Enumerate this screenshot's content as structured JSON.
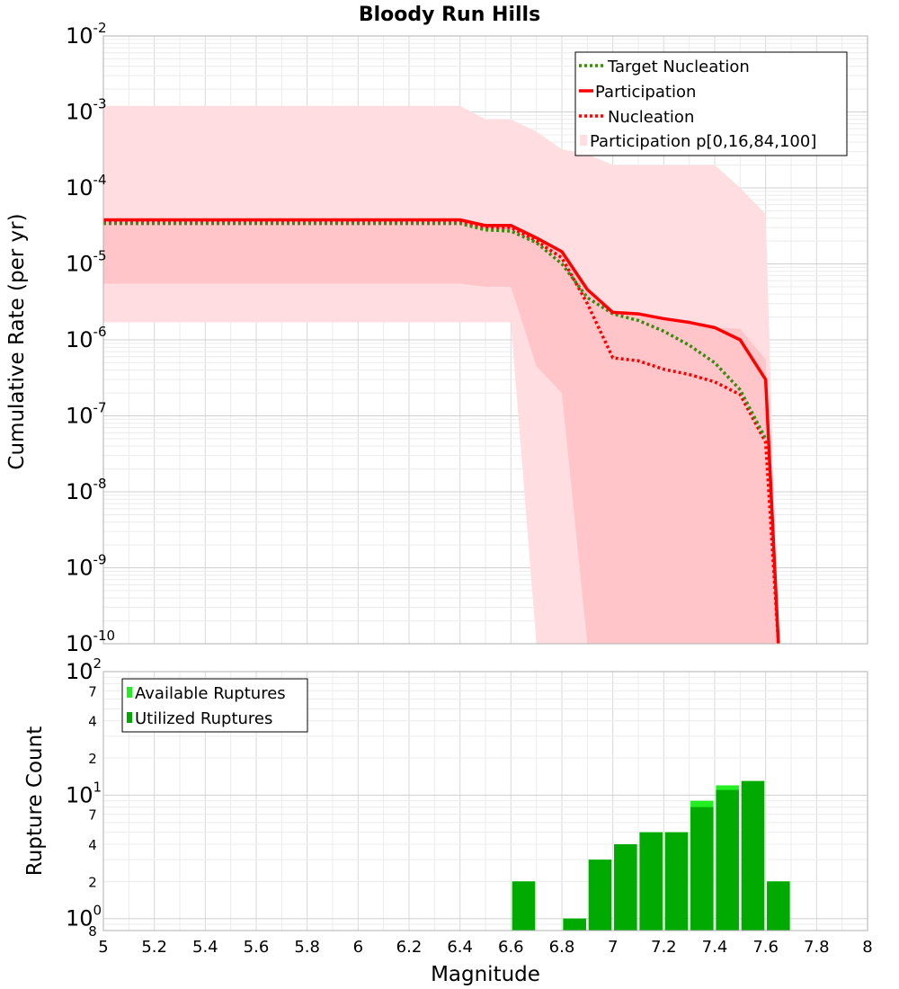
{
  "chart_data": [
    {
      "type": "line",
      "title": "Bloody Run Hills",
      "xlabel": "",
      "ylabel": "Cumulative Rate (per yr)",
      "xlim": [
        5,
        8
      ],
      "ylim": [
        1e-10,
        0.01
      ],
      "yscale": "log",
      "grid": true,
      "legend_position": "top-right",
      "y_ticks": [
        {
          "base": "10",
          "exp": "-10",
          "v": 1e-10
        },
        {
          "base": "10",
          "exp": "-9",
          "v": 1e-09
        },
        {
          "base": "10",
          "exp": "-8",
          "v": 1e-08
        },
        {
          "base": "10",
          "exp": "-7",
          "v": 1e-07
        },
        {
          "base": "10",
          "exp": "-6",
          "v": 1e-06
        },
        {
          "base": "10",
          "exp": "-5",
          "v": 1e-05
        },
        {
          "base": "10",
          "exp": "-4",
          "v": 0.0001
        },
        {
          "base": "10",
          "exp": "-3",
          "v": 0.001
        },
        {
          "base": "10",
          "exp": "-2",
          "v": 0.01
        }
      ],
      "series": [
        {
          "name": "Target Nucleation",
          "style": "dotted",
          "color": "#3a8a10",
          "x": [
            5.0,
            6.4,
            6.5,
            6.6,
            6.7,
            6.8,
            6.9,
            7.0,
            7.1,
            7.2,
            7.3,
            7.4,
            7.5,
            7.6
          ],
          "y": [
            3.4e-05,
            3.4e-05,
            2.8e-05,
            2.7e-05,
            1.9e-05,
            1e-05,
            3.6e-06,
            2.2e-06,
            1.8e-06,
            1.3e-06,
            8.5e-07,
            5e-07,
            2.2e-07,
            5e-08
          ]
        },
        {
          "name": "Participation",
          "style": "solid",
          "color": "#ff0000",
          "x": [
            5.0,
            6.4,
            6.5,
            6.6,
            6.7,
            6.8,
            6.9,
            7.0,
            7.1,
            7.2,
            7.3,
            7.4,
            7.5,
            7.6,
            7.65
          ],
          "y": [
            3.8e-05,
            3.8e-05,
            3.2e-05,
            3.2e-05,
            2.2e-05,
            1.45e-05,
            4.6e-06,
            2.3e-06,
            2.2e-06,
            1.9e-06,
            1.7e-06,
            1.45e-06,
            1e-06,
            3e-07,
            1e-10
          ]
        },
        {
          "name": "Nucleation",
          "style": "dotted",
          "color": "#ff0000",
          "x": [
            5.0,
            6.4,
            6.5,
            6.6,
            6.7,
            6.8,
            6.9,
            7.0,
            7.1,
            7.2,
            7.3,
            7.4,
            7.5,
            7.6,
            7.65
          ],
          "y": [
            3.6e-05,
            3.6e-05,
            3e-05,
            3e-05,
            2e-05,
            1.2e-05,
            3e-06,
            5.8e-07,
            5.3e-07,
            4.1e-07,
            3.5e-07,
            2.8e-07,
            1.9e-07,
            4.5e-08,
            1e-10
          ]
        }
      ],
      "bands": [
        {
          "name": "Participation p[0,16,84,100]",
          "color": "#ffdde0",
          "x": [
            5.0,
            6.4,
            6.5,
            6.6,
            6.7,
            6.8,
            6.9,
            7.0,
            7.1,
            7.2,
            7.3,
            7.4,
            7.5,
            7.6,
            7.65
          ],
          "upper": [
            0.0012,
            0.0012,
            0.0008,
            0.0008,
            0.00055,
            0.00032,
            0.00028,
            0.0002,
            0.0002,
            0.0002,
            0.0002,
            0.0002,
            0.0001,
            4.5e-05,
            1e-10
          ],
          "lower": [
            1.7e-06,
            1.7e-06,
            1.7e-06,
            1.7e-06,
            1e-10,
            1e-10,
            1e-10,
            1e-10,
            1e-10,
            1e-10,
            1e-10,
            1e-10,
            1e-10,
            1e-10,
            1e-10
          ]
        },
        {
          "name": "",
          "color": "#ffc5c8",
          "x": [
            5.0,
            6.4,
            6.5,
            6.6,
            6.7,
            6.8,
            6.9,
            7.0,
            7.1,
            7.2,
            7.3,
            7.4,
            7.5,
            7.6,
            7.65
          ],
          "upper": [
            3.8e-05,
            3.8e-05,
            3.2e-05,
            3.2e-05,
            2.2e-05,
            1.45e-05,
            4.6e-06,
            2.3e-06,
            2.2e-06,
            1.9e-06,
            1.7e-06,
            1.45e-06,
            1.4e-06,
            5.5e-07,
            1e-10
          ],
          "lower": [
            5.5e-06,
            5.5e-06,
            5e-06,
            5e-06,
            4.5e-07,
            2e-07,
            1e-10,
            1e-10,
            1e-10,
            1e-10,
            1e-10,
            1e-10,
            1e-10,
            1e-10,
            1e-10
          ]
        }
      ]
    },
    {
      "type": "bar",
      "title": "",
      "xlabel": "Magnitude",
      "ylabel": "Rupture Count",
      "xlim": [
        5,
        8
      ],
      "ylim": [
        0.8,
        100
      ],
      "yscale": "log",
      "grid": true,
      "legend_position": "top-left",
      "x_ticks": [
        "5",
        "5.2",
        "5.4",
        "5.6",
        "5.8",
        "6",
        "6.2",
        "6.4",
        "6.6",
        "6.8",
        "7",
        "7.2",
        "7.4",
        "7.6",
        "7.8",
        "8"
      ],
      "y_ticks": [
        {
          "base": "10",
          "exp": "2",
          "v": 100
        },
        {
          "base": "10",
          "exp": "1",
          "v": 10
        },
        {
          "base": "10",
          "exp": "0",
          "v": 1
        }
      ],
      "y_minor_labels": [
        {
          "text": "7",
          "v": 70
        },
        {
          "text": "4",
          "v": 40
        },
        {
          "text": "2",
          "v": 20
        },
        {
          "text": "7",
          "v": 7
        },
        {
          "text": "4",
          "v": 4
        },
        {
          "text": "2",
          "v": 2
        },
        {
          "text": "8",
          "v": 0.8
        }
      ],
      "bar_width": 0.09,
      "series": [
        {
          "name": "Available Ruptures",
          "color": "#22ee22",
          "x": [
            6.65,
            6.85,
            6.95,
            7.05,
            7.15,
            7.25,
            7.35,
            7.45,
            7.55,
            7.65
          ],
          "values": [
            2,
            1,
            3,
            4,
            5,
            5,
            9,
            12,
            13,
            2
          ]
        },
        {
          "name": "Utilized Ruptures",
          "color": "#00aa00",
          "x": [
            6.65,
            6.85,
            6.95,
            7.05,
            7.15,
            7.25,
            7.35,
            7.45,
            7.55,
            7.65
          ],
          "values": [
            2,
            1,
            3,
            4,
            5,
            5,
            8,
            11,
            13,
            2
          ]
        }
      ]
    }
  ]
}
